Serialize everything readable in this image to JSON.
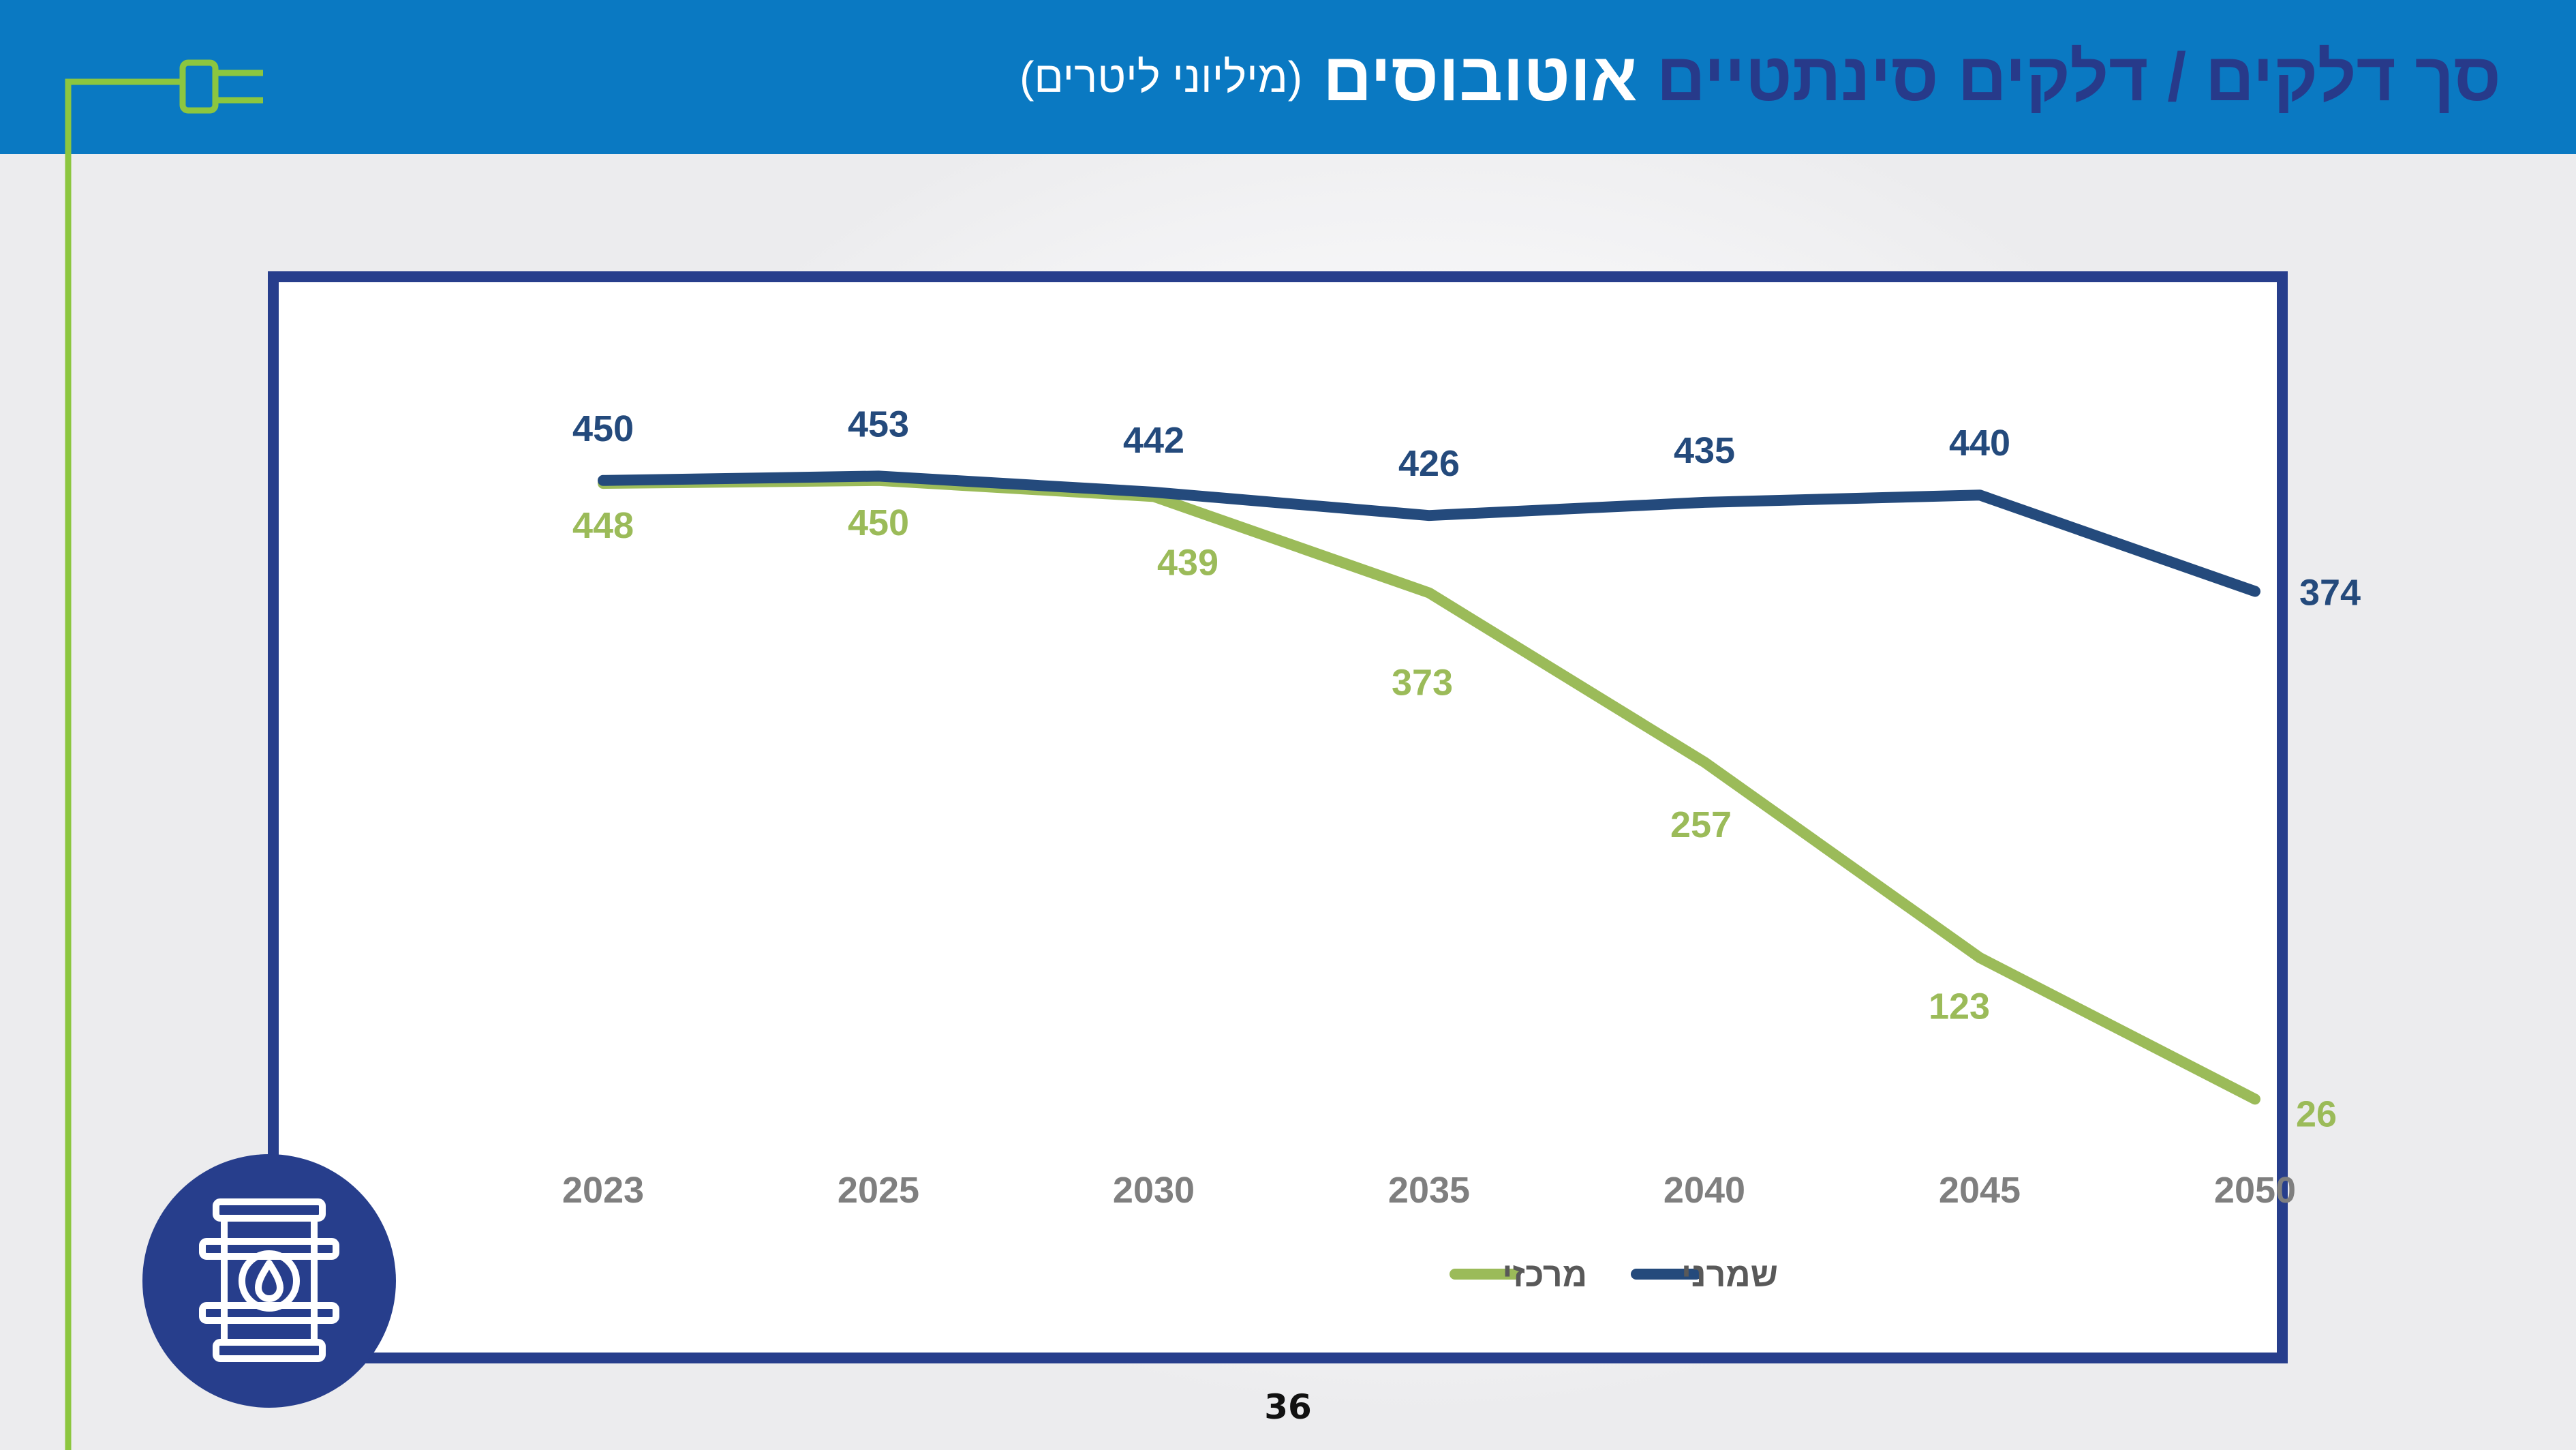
{
  "header": {
    "title_main": "סך דלקים / דלקים סינתטיים",
    "title_highlight": "אוטובוסים",
    "title_unit": "(מיליוני ליטרים)"
  },
  "icons": {
    "plug": "plug-icon",
    "badge": "oil-barrel-icon"
  },
  "colors": {
    "header_bg": "#0a79c2",
    "title_dark": "#273a8a",
    "frame": "#273e8c",
    "series_conservative": "#244a7c",
    "series_central": "#9bbb59",
    "axis_text": "#7f7f7f",
    "accent_green": "#8cc63f"
  },
  "chart_data": {
    "type": "line",
    "categories": [
      "2023",
      "2025",
      "2030",
      "2035",
      "2040",
      "2045",
      "2050"
    ],
    "series": [
      {
        "name": "שמרני",
        "values": [
          450,
          453,
          442,
          426,
          435,
          440,
          374
        ],
        "color": "#244a7c"
      },
      {
        "name": "מרכזי",
        "values": [
          448,
          450,
          439,
          373,
          257,
          123,
          26
        ],
        "color": "#9bbb59"
      }
    ],
    "data_labels": true,
    "legend_position": "bottom",
    "grid": false,
    "ylim": [
      0,
      470
    ]
  },
  "page_number": "36"
}
